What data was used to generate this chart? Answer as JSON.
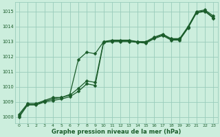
{
  "title": "Graphe pression niveau de la mer (hPa)",
  "bg_color": "#cceedd",
  "grid_color": "#99ccbb",
  "line_color": "#1a5c2a",
  "xlim": [
    -0.5,
    23.5
  ],
  "ylim": [
    1007.6,
    1015.6
  ],
  "yticks": [
    1008,
    1009,
    1010,
    1011,
    1012,
    1013,
    1014,
    1015
  ],
  "xticks": [
    0,
    1,
    2,
    3,
    4,
    5,
    6,
    7,
    8,
    9,
    10,
    11,
    12,
    13,
    14,
    15,
    16,
    17,
    18,
    19,
    20,
    21,
    22,
    23
  ],
  "series1_x": [
    0,
    1,
    2,
    3,
    4,
    5,
    6,
    7,
    8,
    9,
    10,
    11,
    12,
    13,
    14,
    15,
    16,
    17,
    18,
    19,
    20,
    21,
    22,
    23
  ],
  "series1_y": [
    1008.2,
    1008.9,
    1008.9,
    1009.1,
    1009.3,
    1009.3,
    1009.5,
    1011.8,
    1012.3,
    1012.2,
    1013.0,
    1013.1,
    1013.1,
    1013.1,
    1013.0,
    1013.0,
    1013.3,
    1013.5,
    1013.2,
    1013.2,
    1014.0,
    1015.0,
    1015.1,
    1014.7
  ],
  "series2_x": [
    0,
    1,
    2,
    3,
    4,
    5,
    6,
    7,
    8,
    9,
    10,
    11,
    12,
    13,
    14,
    15,
    16,
    17,
    18,
    19,
    20,
    21,
    22,
    23
  ],
  "series2_y": [
    1008.1,
    1008.85,
    1008.85,
    1009.05,
    1009.2,
    1009.3,
    1009.45,
    1009.9,
    1010.4,
    1010.3,
    1013.0,
    1013.05,
    1013.05,
    1013.05,
    1013.0,
    1012.95,
    1013.25,
    1013.45,
    1013.15,
    1013.15,
    1013.95,
    1014.95,
    1015.05,
    1014.6
  ],
  "series3_x": [
    0,
    1,
    2,
    3,
    4,
    5,
    6,
    7,
    8,
    9,
    10,
    11,
    12,
    13,
    14,
    15,
    16,
    17,
    18,
    19,
    20,
    21,
    22,
    23
  ],
  "series3_y": [
    1008.0,
    1008.8,
    1008.8,
    1009.0,
    1009.1,
    1009.2,
    1009.35,
    1009.7,
    1010.2,
    1010.1,
    1012.95,
    1013.0,
    1013.0,
    1013.0,
    1012.95,
    1012.9,
    1013.2,
    1013.4,
    1013.1,
    1013.1,
    1013.9,
    1014.9,
    1015.0,
    1014.55
  ],
  "figw": 3.2,
  "figh": 2.0,
  "dpi": 100
}
